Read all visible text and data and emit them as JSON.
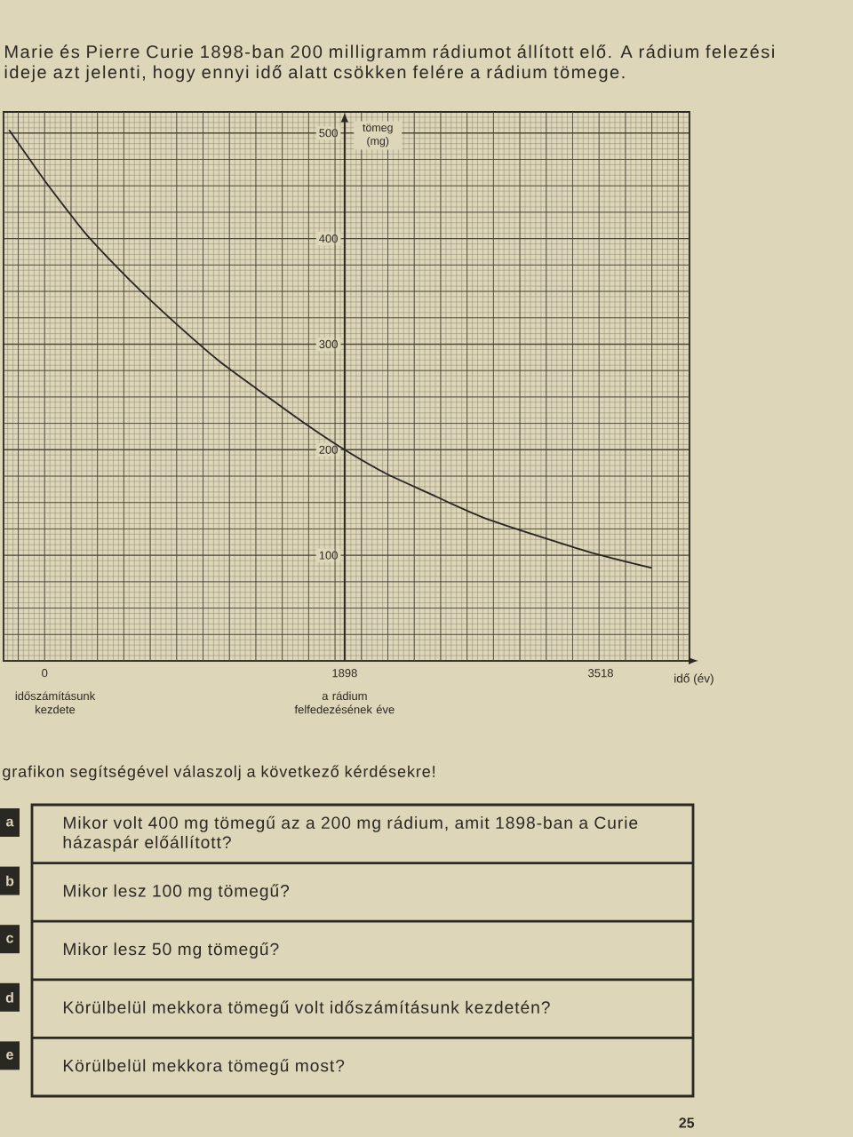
{
  "chart_data": {
    "type": "line",
    "title": "Marie és Pierre Curie 1898-ban 200 milligramm rádiumot állított elő. A rádium felezési ideje azt jelenti, hogy ennyi idő alatt csökken felére a rádium tömege.",
    "xlabel": "idő (év)",
    "ylabel": "tömeg (mg)",
    "x": [
      -225,
      0,
      168,
      281,
      543,
      805,
      1104,
      1404,
      1665,
      1898,
      2153,
      2414,
      2789,
      3425,
      3841
    ],
    "values": [
      503,
      455,
      422,
      401,
      360,
      323,
      284,
      251,
      223,
      200,
      178,
      160,
      135,
      104,
      88
    ],
    "color": "#26251f",
    "xlim": [
      -260,
      4080
    ],
    "ylim": [
      0,
      520
    ],
    "xticks": [
      0,
      1898,
      3518
    ],
    "yticks": [
      100,
      200,
      300,
      400,
      500
    ],
    "grid": true,
    "annotations": [
      "időszámításunk kezdete",
      "a rádium felfedezésének éve",
      "grafikon segítségével válaszolj a következő kérdésekre!",
      "a",
      "Mikor volt 400 mg tömegű az a 200 mg rádium, amit 1898-ban a Curie házaspár előállított?",
      "b",
      "Mikor lesz 100 mg tömegű?",
      "c",
      "Mikor lesz 50 mg tömegű?",
      "d",
      "Körülbelül mekkora tömegű volt időszámításunk kezdetén?",
      "e",
      "Körülbelül mekkora tömegű most?",
      "25"
    ]
  }
}
